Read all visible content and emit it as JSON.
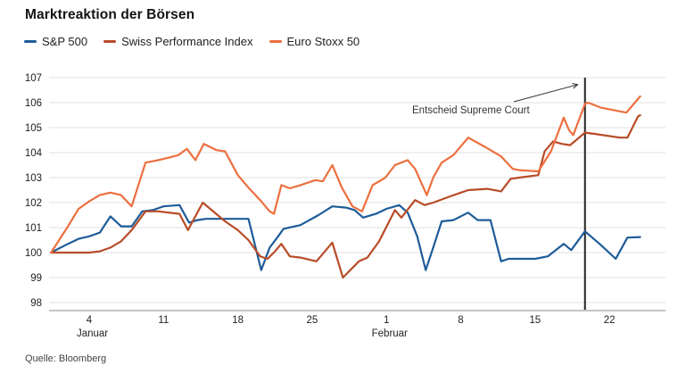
{
  "header": {
    "title": "Marktreaktion der Börsen"
  },
  "footer": {
    "source": "Quelle: Bloomberg"
  },
  "colors": {
    "sp500": "#1e5c99",
    "spi": "#b84c28",
    "eurostoxx": "#ec6f3f",
    "grid": "#e2e2e2",
    "axis": "#888888",
    "event_line": "#222222",
    "text": "#222222",
    "annotation": "#333333"
  },
  "chart_data": {
    "type": "line",
    "title": "Marktreaktion der Börsen",
    "xlabel": "",
    "ylabel": "",
    "ylim": [
      98,
      107
    ],
    "yticks": [
      98,
      99,
      100,
      101,
      102,
      103,
      104,
      105,
      106,
      107
    ],
    "grid": "horizontal-only",
    "legend_position": "top-left",
    "x_unit": "day (1 = 1. Januar, 32 = 1. Februar)",
    "xticks": [
      {
        "day": 4,
        "label": "4"
      },
      {
        "day": 11,
        "label": "11"
      },
      {
        "day": 18,
        "label": "18"
      },
      {
        "day": 25,
        "label": "25"
      },
      {
        "day": 32,
        "label": "1"
      },
      {
        "day": 39,
        "label": "8"
      },
      {
        "day": 46,
        "label": "15"
      },
      {
        "day": 53,
        "label": "22"
      }
    ],
    "month_labels": [
      {
        "day": 4.3,
        "label": "Januar"
      },
      {
        "day": 32.3,
        "label": "Februar"
      }
    ],
    "annotation": {
      "text": "Entscheid Supreme Court",
      "vline_day": 50.7,
      "vline_label_meaning": "ca. 20. Februar"
    },
    "series": [
      {
        "name": "S&P 500",
        "color": "#1e5c99",
        "points": [
          [
            0.4,
            100
          ],
          [
            2,
            100.35
          ],
          [
            3,
            100.55
          ],
          [
            4,
            100.65
          ],
          [
            5,
            100.8
          ],
          [
            6,
            101.45
          ],
          [
            7,
            101.05
          ],
          [
            8,
            101.05
          ],
          [
            9,
            101.65
          ],
          [
            10,
            101.7
          ],
          [
            11,
            101.85
          ],
          [
            12.5,
            101.9
          ],
          [
            13.4,
            101.2
          ],
          [
            14.2,
            101.3
          ],
          [
            15,
            101.35
          ],
          [
            19,
            101.35
          ],
          [
            20.2,
            99.3
          ],
          [
            21,
            100.2
          ],
          [
            21.8,
            100.65
          ],
          [
            22.3,
            100.95
          ],
          [
            23.9,
            101.1
          ],
          [
            25.6,
            101.5
          ],
          [
            26.9,
            101.85
          ],
          [
            28.2,
            101.8
          ],
          [
            29,
            101.7
          ],
          [
            29.8,
            101.4
          ],
          [
            31,
            101.55
          ],
          [
            32,
            101.75
          ],
          [
            33.2,
            101.9
          ],
          [
            34,
            101.6
          ],
          [
            34.9,
            100.65
          ],
          [
            35.7,
            99.3
          ],
          [
            36.4,
            100.2
          ],
          [
            37.2,
            101.25
          ],
          [
            38.3,
            101.3
          ],
          [
            39.7,
            101.6
          ],
          [
            40.6,
            101.3
          ],
          [
            41.8,
            101.3
          ],
          [
            42.8,
            99.65
          ],
          [
            43.5,
            99.75
          ],
          [
            46,
            99.75
          ],
          [
            47.2,
            99.85
          ],
          [
            48.7,
            100.35
          ],
          [
            49.4,
            100.1
          ],
          [
            50.7,
            100.85
          ],
          [
            52.2,
            100.3
          ],
          [
            53.6,
            99.75
          ],
          [
            54.7,
            100.6
          ],
          [
            55.9,
            100.62
          ]
        ]
      },
      {
        "name": "Swiss Performance Index",
        "color": "#b84c28",
        "points": [
          [
            0.4,
            100
          ],
          [
            3,
            100.0
          ],
          [
            4,
            100.0
          ],
          [
            5,
            100.05
          ],
          [
            6,
            100.2
          ],
          [
            7,
            100.45
          ],
          [
            8,
            100.9
          ],
          [
            9.3,
            101.65
          ],
          [
            10.5,
            101.65
          ],
          [
            12.5,
            101.55
          ],
          [
            13.3,
            100.9
          ],
          [
            14.7,
            102.0
          ],
          [
            16.8,
            101.25
          ],
          [
            18,
            100.9
          ],
          [
            19,
            100.5
          ],
          [
            20.1,
            99.85
          ],
          [
            20.8,
            99.75
          ],
          [
            21.5,
            100.05
          ],
          [
            22.1,
            100.35
          ],
          [
            22.9,
            99.85
          ],
          [
            23.9,
            99.8
          ],
          [
            25.4,
            99.65
          ],
          [
            26.9,
            100.4
          ],
          [
            27.9,
            99.0
          ],
          [
            29.4,
            99.65
          ],
          [
            30.2,
            99.8
          ],
          [
            31.3,
            100.45
          ],
          [
            32.8,
            101.7
          ],
          [
            33.4,
            101.4
          ],
          [
            34.7,
            102.1
          ],
          [
            35.6,
            101.9
          ],
          [
            36.4,
            102.0
          ],
          [
            38,
            102.25
          ],
          [
            39.7,
            102.5
          ],
          [
            41.5,
            102.55
          ],
          [
            42.8,
            102.45
          ],
          [
            43.7,
            102.95
          ],
          [
            44.5,
            103.0
          ],
          [
            46.3,
            103.1
          ],
          [
            46.9,
            104.05
          ],
          [
            47.7,
            104.45
          ],
          [
            48.5,
            104.35
          ],
          [
            49.3,
            104.3
          ],
          [
            50.7,
            104.8
          ],
          [
            51.6,
            104.75
          ],
          [
            54,
            104.6
          ],
          [
            54.7,
            104.6
          ],
          [
            55.7,
            105.45
          ],
          [
            55.9,
            105.5
          ]
        ]
      },
      {
        "name": "Euro Stoxx 50",
        "color": "#ec6f3f",
        "points": [
          [
            0.4,
            100
          ],
          [
            2,
            101.05
          ],
          [
            3,
            101.75
          ],
          [
            4,
            102.05
          ],
          [
            5,
            102.3
          ],
          [
            6,
            102.4
          ],
          [
            7,
            102.3
          ],
          [
            8,
            101.85
          ],
          [
            9.3,
            103.6
          ],
          [
            10.5,
            103.7
          ],
          [
            11.5,
            103.8
          ],
          [
            12.4,
            103.9
          ],
          [
            13.2,
            104.15
          ],
          [
            14,
            103.7
          ],
          [
            14.8,
            104.35
          ],
          [
            16,
            104.1
          ],
          [
            16.8,
            104.05
          ],
          [
            18,
            103.1
          ],
          [
            19,
            102.6
          ],
          [
            20.1,
            102.1
          ],
          [
            21,
            101.65
          ],
          [
            21.4,
            101.55
          ],
          [
            22.1,
            102.7
          ],
          [
            22.9,
            102.57
          ],
          [
            23.9,
            102.7
          ],
          [
            25.3,
            102.9
          ],
          [
            26,
            102.85
          ],
          [
            26.9,
            103.5
          ],
          [
            27.8,
            102.6
          ],
          [
            28.8,
            101.85
          ],
          [
            29.7,
            101.65
          ],
          [
            30.7,
            102.7
          ],
          [
            31.9,
            103.0
          ],
          [
            32.8,
            103.5
          ],
          [
            34,
            103.7
          ],
          [
            34.7,
            103.35
          ],
          [
            35.8,
            102.3
          ],
          [
            36.4,
            103.0
          ],
          [
            37.2,
            103.6
          ],
          [
            38.3,
            103.9
          ],
          [
            39.7,
            104.6
          ],
          [
            41.4,
            104.2
          ],
          [
            42.8,
            103.85
          ],
          [
            43.9,
            103.35
          ],
          [
            44.5,
            103.3
          ],
          [
            46.3,
            103.25
          ],
          [
            47.5,
            104.05
          ],
          [
            48.7,
            105.4
          ],
          [
            49.2,
            104.9
          ],
          [
            49.6,
            104.7
          ],
          [
            50.7,
            105.95
          ],
          [
            51,
            106.0
          ],
          [
            52.2,
            105.8
          ],
          [
            54,
            105.65
          ],
          [
            54.6,
            105.6
          ],
          [
            55.9,
            106.25
          ]
        ]
      }
    ]
  }
}
